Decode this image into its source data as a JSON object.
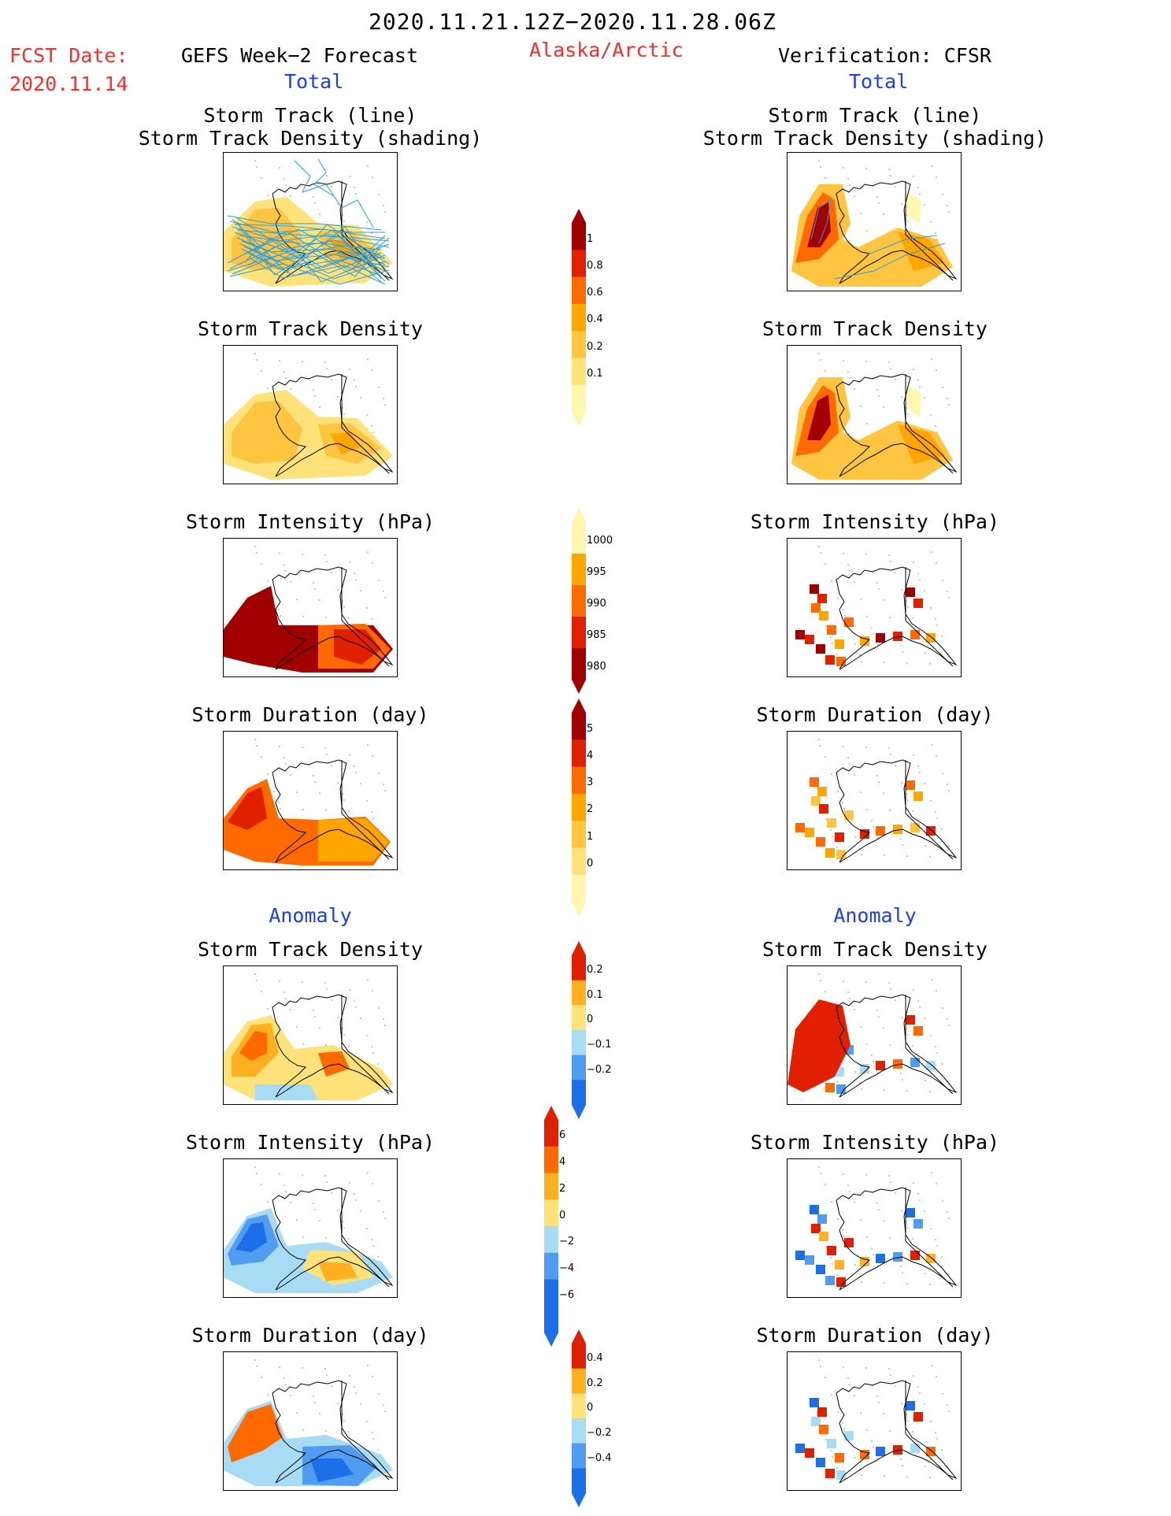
{
  "header": {
    "date_range": "2020.11.21.12Z−2020.11.28.06Z",
    "fcst_date_label": "FCST Date:",
    "fcst_date": "2020.11.14",
    "left_title": "GEFS Week−2 Forecast",
    "region": "Alaska/Arctic",
    "right_title": "Verification: CFSR"
  },
  "sections": {
    "total": "Total",
    "anomaly": "Anomaly"
  },
  "panels": {
    "track_line": "Storm Track (line)\nStorm Track Density (shading)",
    "density": "Storm Track Density",
    "intensity": "Storm Intensity (hPa)",
    "duration": "Storm Duration (day)"
  },
  "colorbars": {
    "density_total": [
      "1",
      "0.8",
      "0.6",
      "0.4",
      "0.2",
      "0.1"
    ],
    "intensity_total": [
      "1000",
      "995",
      "990",
      "985",
      "980"
    ],
    "duration_total": [
      "5",
      "4",
      "3",
      "2",
      "1",
      "0"
    ],
    "density_anom": [
      "0.2",
      "0.1",
      "0",
      "−0.1",
      "−0.2"
    ],
    "intensity_anom": [
      "6",
      "4",
      "2",
      "0",
      "−2",
      "−4",
      "−6"
    ],
    "duration_anom": [
      "0.4",
      "0.2",
      "0",
      "−0.2",
      "−0.4"
    ]
  },
  "colors": {
    "fcst_red": "#ff2a2a",
    "section_blue": "#1a3cff",
    "track_line": "#2a9fe0",
    "warm_scale": [
      "#fff6b0",
      "#ffe27a",
      "#ffc440",
      "#ffa500",
      "#ff6a00",
      "#e02000",
      "#a00000"
    ],
    "anom_scale": [
      "#1d6fe8",
      "#4f9cf0",
      "#a8dcf5",
      "#ffe27a",
      "#ffb020",
      "#ff6a00",
      "#e02000"
    ]
  }
}
